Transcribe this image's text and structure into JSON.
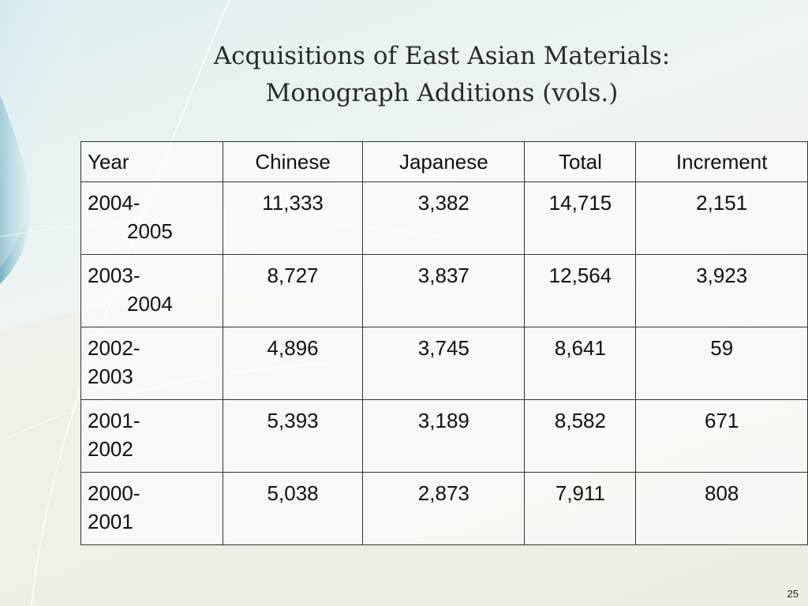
{
  "title": {
    "line1": "Acquisitions of East Asian Materials:",
    "line2": "Monograph Additions (vols.)"
  },
  "table": {
    "headers": [
      "Year",
      "Chinese",
      "Japanese",
      "Total",
      "Increment"
    ],
    "rows": [
      {
        "year_1": "2004-",
        "year_2": "2005",
        "chinese": "11,333",
        "japanese": "3,382",
        "total": "14,715",
        "increment": "2,151"
      },
      {
        "year_1": "2003-",
        "year_2": "2004",
        "chinese": "8,727",
        "japanese": "3,837",
        "total": "12,564",
        "increment": "3,923"
      },
      {
        "year_1": "2002-",
        "year_2": "2003",
        "chinese": "4,896",
        "japanese": "3,745",
        "total": "8,641",
        "increment": "59"
      },
      {
        "year_1": "2001-",
        "year_2": "2002",
        "chinese": "5,393",
        "japanese": "3,189",
        "total": "8,582",
        "increment": "671"
      },
      {
        "year_1": "2000-",
        "year_2": "2001",
        "chinese": "5,038",
        "japanese": "2,873",
        "total": "7,911",
        "increment": "808"
      }
    ]
  },
  "page_number": "25",
  "colors": {
    "accent_teal": "#7fb9c9",
    "background_light": "#eef5f3",
    "background_warm": "#ebe9df",
    "border": "#333333"
  }
}
